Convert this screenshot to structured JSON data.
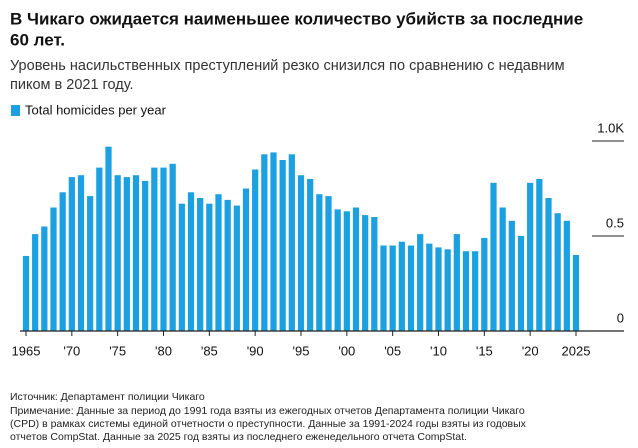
{
  "chart_data": {
    "type": "bar",
    "title": [
      "В Чикаго ожидается наименьшее количество убийств за последние",
      "60 лет."
    ],
    "subtitle": [
      "Уровень насильственных преступлений резко снизился по сравнению с недавним",
      "пиком в 2021 году."
    ],
    "series": [
      {
        "name": "Total homicides per year",
        "color": "#1ba1e2",
        "values": [
          0.395,
          0.51,
          0.55,
          0.65,
          0.73,
          0.81,
          0.82,
          0.71,
          0.86,
          0.97,
          0.82,
          0.81,
          0.82,
          0.79,
          0.86,
          0.86,
          0.88,
          0.67,
          0.73,
          0.7,
          0.67,
          0.72,
          0.69,
          0.66,
          0.75,
          0.85,
          0.93,
          0.94,
          0.9,
          0.93,
          0.82,
          0.8,
          0.72,
          0.71,
          0.64,
          0.63,
          0.65,
          0.61,
          0.6,
          0.45,
          0.45,
          0.47,
          0.45,
          0.51,
          0.46,
          0.44,
          0.43,
          0.51,
          0.42,
          0.42,
          0.49,
          0.78,
          0.65,
          0.58,
          0.5,
          0.78,
          0.8,
          0.7,
          0.62,
          0.58,
          0.4
        ]
      }
    ],
    "x": [
      1965,
      1966,
      1967,
      1968,
      1969,
      1970,
      1971,
      1972,
      1973,
      1974,
      1975,
      1976,
      1977,
      1978,
      1979,
      1980,
      1981,
      1982,
      1983,
      1984,
      1985,
      1986,
      1987,
      1988,
      1989,
      1990,
      1991,
      1992,
      1993,
      1994,
      1995,
      1996,
      1997,
      1998,
      1999,
      2000,
      2001,
      2002,
      2003,
      2004,
      2005,
      2006,
      2007,
      2008,
      2009,
      2010,
      2011,
      2012,
      2013,
      2014,
      2015,
      2016,
      2017,
      2018,
      2019,
      2020,
      2021,
      2022,
      2023,
      2024,
      2025
    ],
    "xticks": [
      1965,
      {
        "value": 1970,
        "label": "'70"
      },
      {
        "value": 1975,
        "label": "'75"
      },
      {
        "value": 1980,
        "label": "'80"
      },
      {
        "value": 1985,
        "label": "'85"
      },
      {
        "value": 1990,
        "label": "'90"
      },
      {
        "value": 1995,
        "label": "'95"
      },
      {
        "value": 2000,
        "label": "'00"
      },
      {
        "value": 2005,
        "label": "'05"
      },
      {
        "value": 2010,
        "label": "'10"
      },
      {
        "value": 2015,
        "label": "'15"
      },
      {
        "value": 2020,
        "label": "'20"
      },
      2025
    ],
    "ylim": [
      0,
      1
    ],
    "yticks": [
      0,
      0.5,
      {
        "value": 1,
        "label": "1.0K"
      }
    ],
    "grid": false,
    "source": "Источник: Департамент полиции Чикаго",
    "notes": [
      "Примечание: Данные за период до 1991 года взяты из ежегодных отчетов Департамента полиции Чикаго",
      "(CPD) в рамках системы единой отчетности о преступности. Данные за 1991-2024 годы взяты из годовых",
      "отчетов CompStat. Данные за 2025 год взяты из последнего еженедельного отчета CompStat."
    ]
  }
}
